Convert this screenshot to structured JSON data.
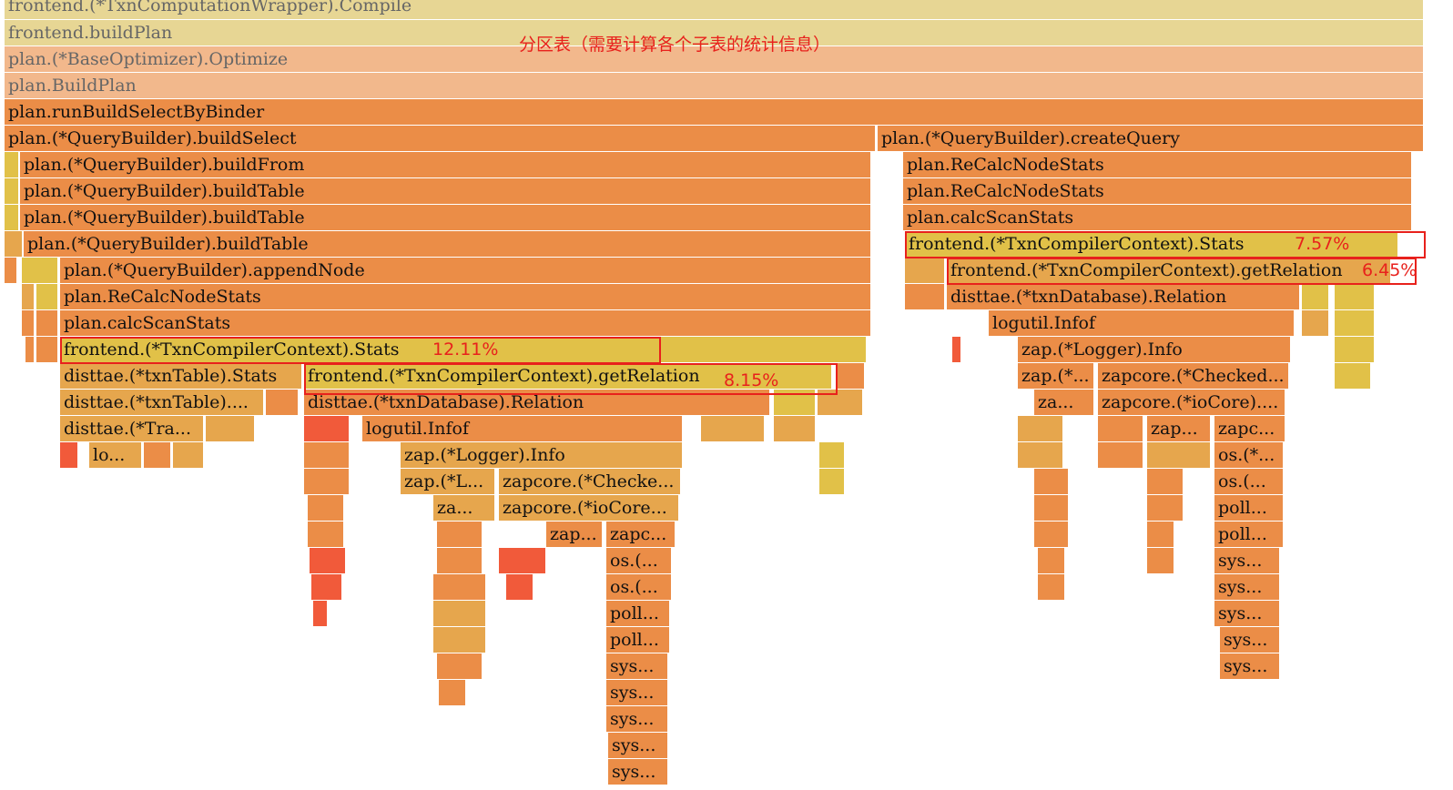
{
  "annotation": "分区表（需要计算各个子表的统计信息）",
  "colors": {
    "pale": "#e7d694",
    "light": "#f2b88c",
    "orange": "#eb8d47",
    "amber": "#e6a64d",
    "yellow": "#e1c148",
    "red": "#f15a3a",
    "highlight": "#e8211c"
  },
  "frames": [
    {
      "label": "frontend.(*TxnComputationWrapper).Compile",
      "color": "pale",
      "faded": true
    },
    {
      "label": "frontend.buildPlan",
      "color": "pale",
      "faded": true
    },
    {
      "label": "plan.(*BaseOptimizer).Optimize",
      "color": "light",
      "faded": true
    },
    {
      "label": "plan.BuildPlan",
      "color": "light",
      "faded": true
    },
    {
      "label": "plan.runBuildSelectByBinder",
      "color": "orange"
    },
    {
      "label": "plan.(*QueryBuilder).buildSelect",
      "color": "orange"
    },
    {
      "label": "plan.(*QueryBuilder).createQuery",
      "color": "orange"
    },
    {
      "label": "plan.(*QueryBuilder).buildFrom",
      "color": "orange"
    },
    {
      "label": "plan.ReCalcNodeStats",
      "color": "orange"
    },
    {
      "label": "plan.(*QueryBuilder).buildTable",
      "color": "orange"
    },
    {
      "label": "plan.ReCalcNodeStats",
      "color": "orange"
    },
    {
      "label": "plan.(*QueryBuilder).buildTable",
      "color": "orange"
    },
    {
      "label": "plan.calcScanStats",
      "color": "orange"
    },
    {
      "label": "plan.(*QueryBuilder).buildTable",
      "color": "orange"
    },
    {
      "label": "frontend.(*TxnCompilerContext).Stats",
      "color": "yellow"
    },
    {
      "label": "plan.(*QueryBuilder).appendNode",
      "color": "orange"
    },
    {
      "label": "frontend.(*TxnCompilerContext).getRelation",
      "color": "amber"
    },
    {
      "label": "plan.ReCalcNodeStats",
      "color": "orange"
    },
    {
      "label": "disttae.(*txnDatabase).Relation",
      "color": "orange"
    },
    {
      "label": "plan.calcScanStats",
      "color": "orange"
    },
    {
      "label": "logutil.Infof",
      "color": "orange"
    },
    {
      "label": "frontend.(*TxnCompilerContext).Stats",
      "color": "yellow"
    },
    {
      "label": "zap.(*Logger).Info",
      "color": "orange"
    },
    {
      "label": "disttae.(*txnTable).Stats",
      "color": "amber"
    },
    {
      "label": "frontend.(*TxnCompilerContext).getRelation",
      "color": "yellow"
    },
    {
      "label": "zap.(*...",
      "color": "orange"
    },
    {
      "label": "zapcore.(*Checked...",
      "color": "orange"
    },
    {
      "label": "disttae.(*txnTable)....",
      "color": "amber"
    },
    {
      "label": "disttae.(*txnDatabase).Relation",
      "color": "orange"
    },
    {
      "label": "za...",
      "color": "orange"
    },
    {
      "label": "zapcore.(*ioCore)....",
      "color": "orange"
    },
    {
      "label": "disttae.(*Tra...",
      "color": "amber"
    },
    {
      "label": "logutil.Infof",
      "color": "orange"
    },
    {
      "label": "zap...",
      "color": "orange"
    },
    {
      "label": "zapc...",
      "color": "orange"
    },
    {
      "label": "lo...",
      "color": "amber"
    },
    {
      "label": "zap.(*Logger).Info",
      "color": "amber"
    },
    {
      "label": "os.(*...",
      "color": "orange"
    },
    {
      "label": "zap.(*L...",
      "color": "amber"
    },
    {
      "label": "zapcore.(*Checke...",
      "color": "amber"
    },
    {
      "label": "os.(...",
      "color": "orange"
    },
    {
      "label": "za...",
      "color": "amber"
    },
    {
      "label": "zapcore.(*ioCore...",
      "color": "amber"
    },
    {
      "label": "poll...",
      "color": "orange"
    },
    {
      "label": "zap...",
      "color": "orange"
    },
    {
      "label": "zapc...",
      "color": "orange"
    },
    {
      "label": "poll...",
      "color": "orange"
    },
    {
      "label": "os.(...",
      "color": "orange"
    },
    {
      "label": "sys...",
      "color": "orange"
    },
    {
      "label": "os.(...",
      "color": "orange"
    },
    {
      "label": "sys...",
      "color": "orange"
    },
    {
      "label": "poll...",
      "color": "orange"
    },
    {
      "label": "sys...",
      "color": "orange"
    },
    {
      "label": "poll...",
      "color": "orange"
    },
    {
      "label": "sys...",
      "color": "orange"
    },
    {
      "label": "sys...",
      "color": "orange"
    },
    {
      "label": "sys...",
      "color": "orange"
    },
    {
      "label": "sys...",
      "color": "orange"
    },
    {
      "label": "sys...",
      "color": "orange"
    },
    {
      "label": "sys...",
      "color": "orange"
    },
    {
      "label": "sys...",
      "color": "orange"
    }
  ],
  "highlights": [
    {
      "frame": "frontend.(*TxnCompilerContext).Stats",
      "percent": "12.11%"
    },
    {
      "frame": "frontend.(*TxnCompilerContext).getRelation",
      "percent": "8.15%"
    },
    {
      "frame": "frontend.(*TxnCompilerContext).Stats",
      "percent": "7.57%"
    },
    {
      "frame": "frontend.(*TxnCompilerContext).getRelation",
      "percent": "6.45%"
    }
  ]
}
